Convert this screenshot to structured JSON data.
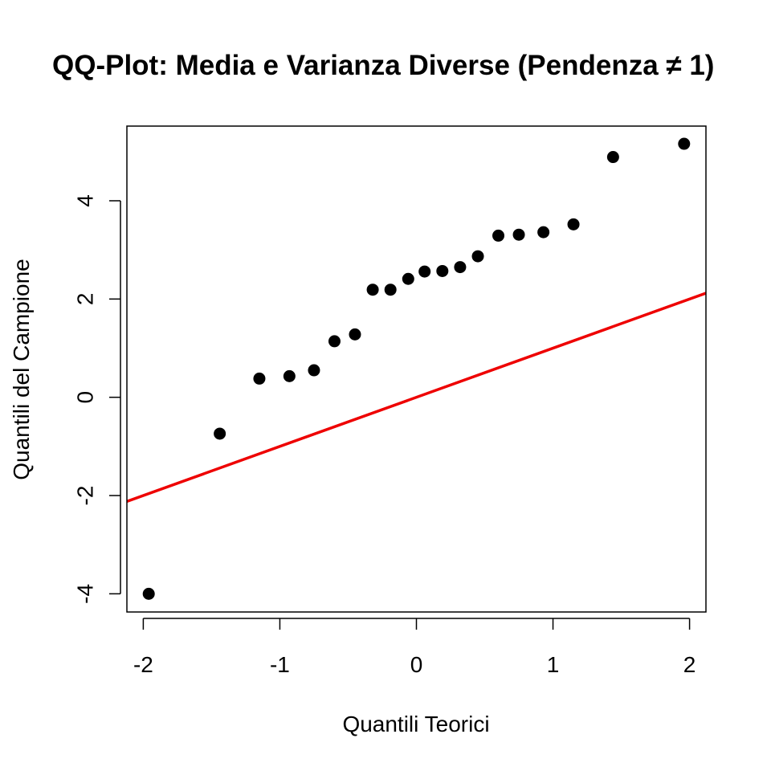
{
  "chart_data": {
    "type": "scatter",
    "title": "QQ-Plot: Media e Varianza Diverse (Pendenza ≠ 1)",
    "xlabel": "Quantili Teorici",
    "ylabel": "Quantili del Campione",
    "xlim": [
      -2.12,
      2.12
    ],
    "ylim": [
      -4.37,
      5.52
    ],
    "x_ticks": [
      -2,
      -1,
      0,
      1,
      2
    ],
    "x_tick_labels": [
      "-2",
      "-1",
      "0",
      "1",
      "2"
    ],
    "y_ticks": [
      -4,
      -2,
      0,
      2,
      4
    ],
    "y_tick_labels": [
      "-4",
      "-2",
      "0",
      "2",
      "4"
    ],
    "grid": false,
    "points": [
      {
        "x": -1.96,
        "y": -4.0
      },
      {
        "x": -1.44,
        "y": -0.74
      },
      {
        "x": -1.15,
        "y": 0.38
      },
      {
        "x": -0.93,
        "y": 0.43
      },
      {
        "x": -0.75,
        "y": 0.55
      },
      {
        "x": -0.6,
        "y": 1.14
      },
      {
        "x": -0.45,
        "y": 1.28
      },
      {
        "x": -0.32,
        "y": 2.19
      },
      {
        "x": -0.19,
        "y": 2.19
      },
      {
        "x": -0.06,
        "y": 2.41
      },
      {
        "x": 0.06,
        "y": 2.56
      },
      {
        "x": 0.19,
        "y": 2.57
      },
      {
        "x": 0.32,
        "y": 2.65
      },
      {
        "x": 0.45,
        "y": 2.87
      },
      {
        "x": 0.6,
        "y": 3.29
      },
      {
        "x": 0.75,
        "y": 3.31
      },
      {
        "x": 0.93,
        "y": 3.36
      },
      {
        "x": 1.15,
        "y": 3.52
      },
      {
        "x": 1.44,
        "y": 4.89
      },
      {
        "x": 1.96,
        "y": 5.16
      }
    ],
    "reference_line": {
      "intercept": 0,
      "slope": 1
    },
    "colors": {
      "points": "#000000",
      "line": "#ee0000",
      "frame": "#000000"
    }
  }
}
